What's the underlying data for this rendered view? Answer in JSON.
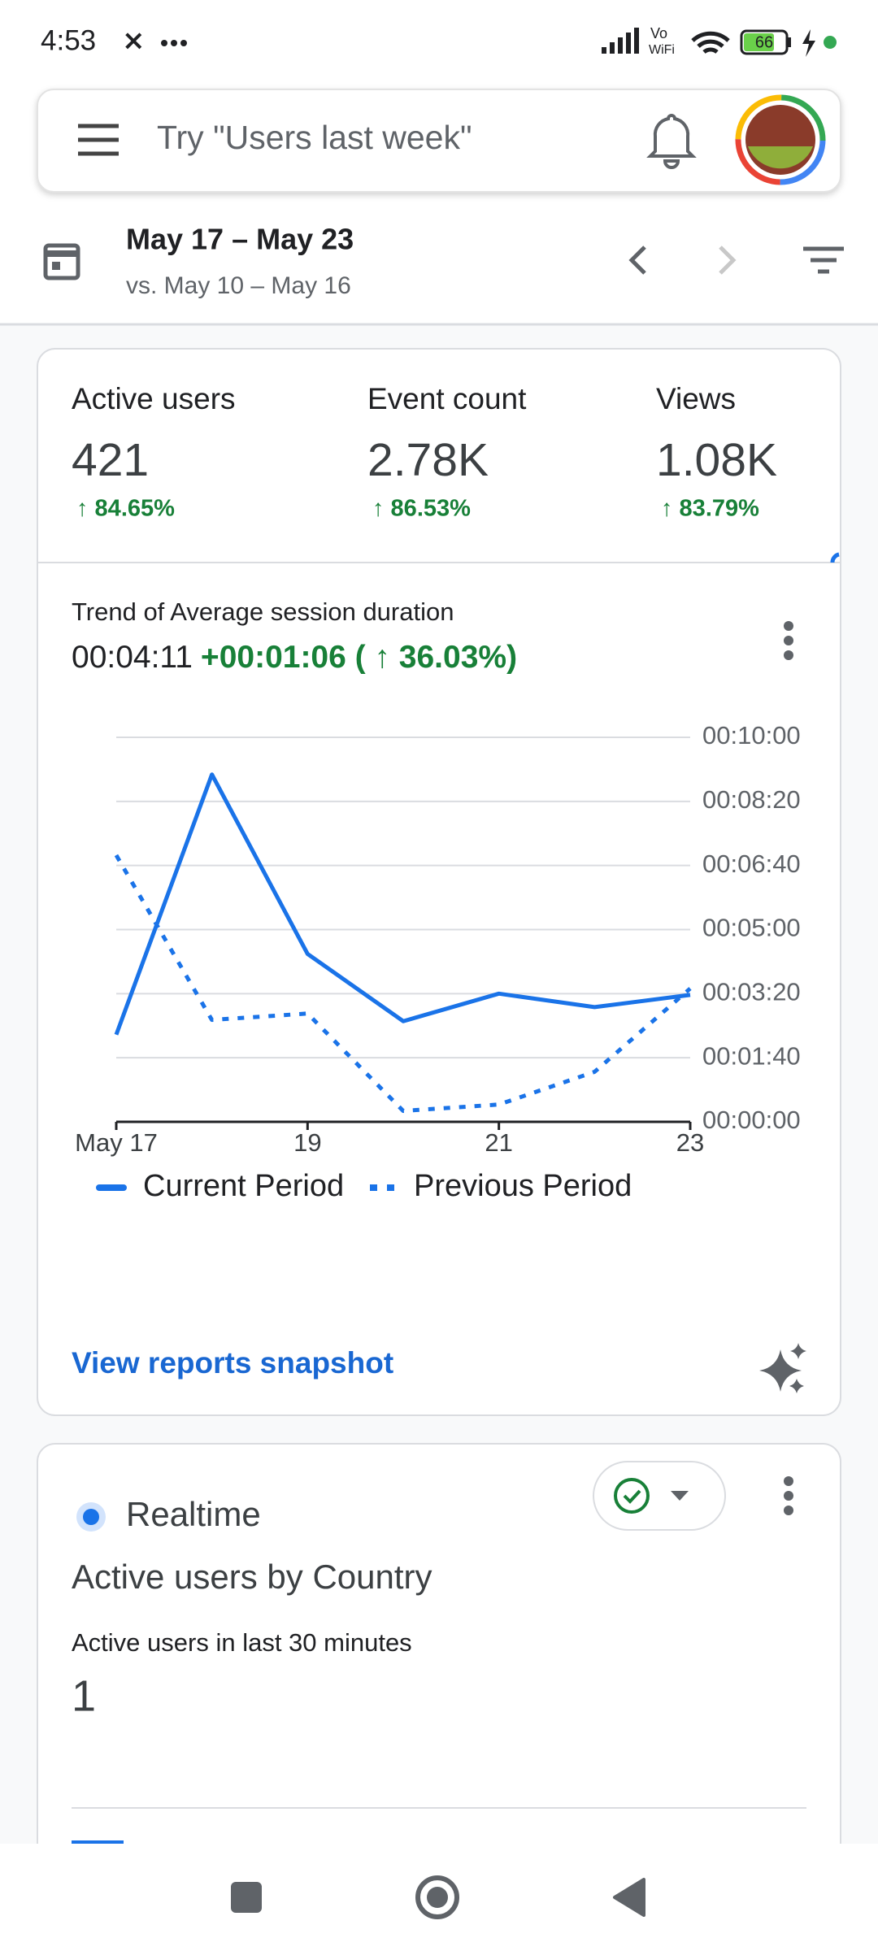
{
  "status_bar": {
    "time": "4:53",
    "battery": "66"
  },
  "search": {
    "placeholder": "Try \"Users last week\""
  },
  "date_range": {
    "title": "May 17 – May 23",
    "compare": "vs. May 10 – May 16"
  },
  "metrics": [
    {
      "label": "Active users",
      "value": "421",
      "change": "↑ 84.65%"
    },
    {
      "label": "Event count",
      "value": "2.78K",
      "change": "↑ 86.53%"
    },
    {
      "label": "Views",
      "value": "1.08K",
      "change": "↑ 83.79%"
    }
  ],
  "trend": {
    "title": "Trend of Average session duration",
    "value": "00:04:11",
    "delta": "+00:01:06 ( ↑ 36.03%)"
  },
  "chart_data": {
    "type": "line",
    "categories": [
      "May 17",
      null,
      "19",
      null,
      "21",
      null,
      "23"
    ],
    "series": [
      {
        "name": "Current Period",
        "color": "#1a73e8",
        "dash": "solid",
        "values": [
          136,
          542,
          262,
          157,
          200,
          179,
          198
        ]
      },
      {
        "name": "Previous Period",
        "color": "#1a73e8",
        "dash": "dotted",
        "values": [
          416,
          159,
          169,
          17,
          27,
          78,
          208
        ]
      }
    ],
    "ylim": [
      0,
      600
    ],
    "yticks": [
      {
        "value": 0,
        "label": "00:00:00"
      },
      {
        "value": 100,
        "label": "00:01:40"
      },
      {
        "value": 200,
        "label": "00:03:20"
      },
      {
        "value": 300,
        "label": "00:05:00"
      },
      {
        "value": 400,
        "label": "00:06:40"
      },
      {
        "value": 500,
        "label": "00:08:20"
      },
      {
        "value": 600,
        "label": "00:10:00"
      }
    ],
    "grid": true,
    "legend": "bottom"
  },
  "snapshot_link": "View reports snapshot",
  "realtime": {
    "badge": "Realtime",
    "title": "Active users by Country",
    "subtitle": "Active users in last 30 minutes",
    "value": "1"
  }
}
